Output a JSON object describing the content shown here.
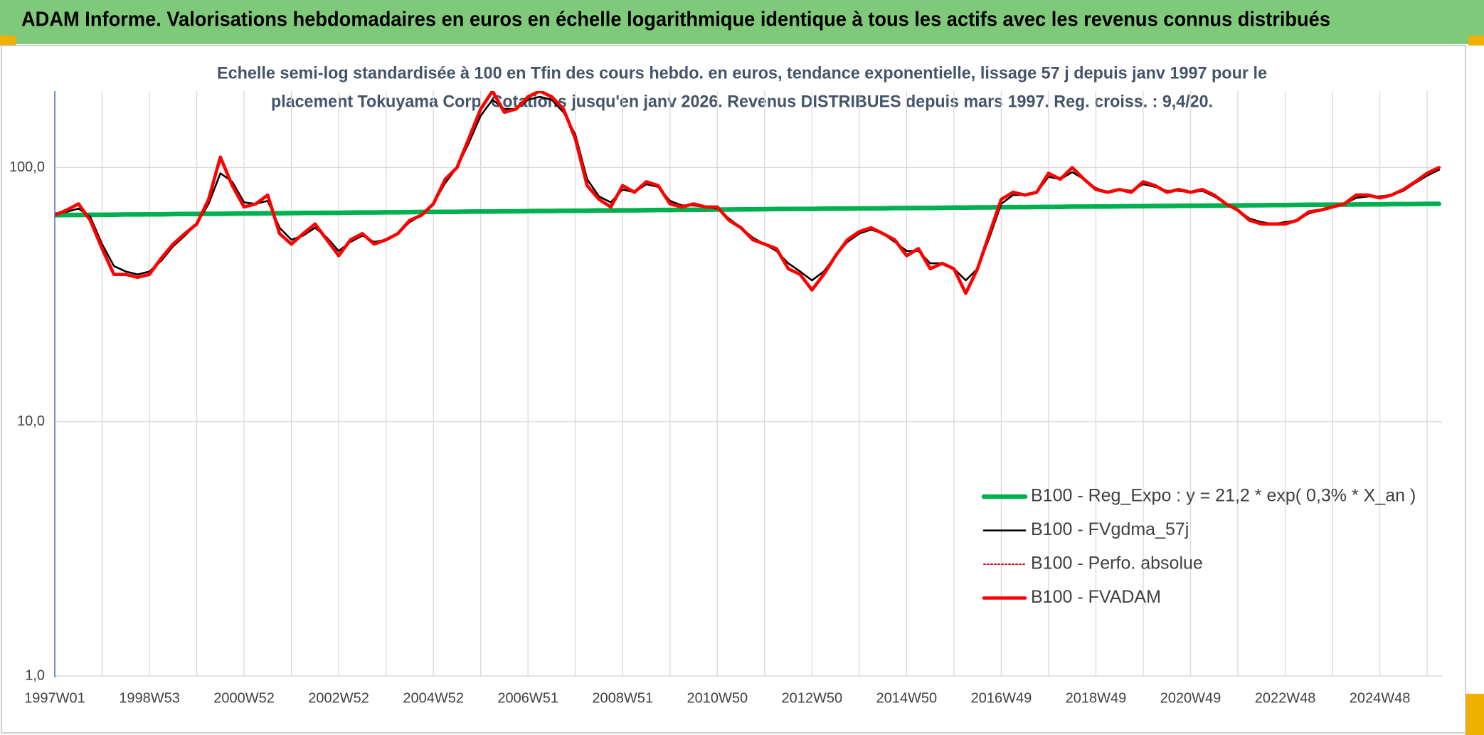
{
  "header": {
    "title": "ADAM Informe. Valorisations hebdomadaires en euros en échelle logarithmique identique à tous les actifs avec les revenus connus distribués"
  },
  "chart_data": {
    "type": "line",
    "subtitle": [
      "Echelle semi-log standardisée à 100 en Tfin des cours hebdo. en euros, tendance exponentielle, lissage 57 j depuis janv 1997 pour le",
      "placement Tokuyama Corp. Cotations jusqu'en janv 2026. Revenus DISTRIBUES depuis mars 1997. Reg. croiss. : 9,4/20."
    ],
    "log_scale": true,
    "grid": true,
    "legend": "lower right",
    "ylim": [
      1,
      200
    ],
    "yticks": [
      {
        "value": 1,
        "label": "1,0"
      },
      {
        "value": 10,
        "label": "10,0"
      },
      {
        "value": 100,
        "label": "100,0"
      }
    ],
    "categories": [
      "1997W01",
      null,
      null,
      null,
      null,
      null,
      null,
      null,
      "1998W53",
      null,
      null,
      null,
      null,
      null,
      null,
      null,
      "2000W52",
      null,
      null,
      null,
      null,
      null,
      null,
      null,
      "2002W52",
      null,
      null,
      null,
      null,
      null,
      null,
      null,
      "2004W52",
      null,
      null,
      null,
      null,
      null,
      null,
      null,
      "2006W51",
      null,
      null,
      null,
      null,
      null,
      null,
      null,
      "2008W51",
      null,
      null,
      null,
      null,
      null,
      null,
      null,
      "2010W50",
      null,
      null,
      null,
      null,
      null,
      null,
      null,
      "2012W50",
      null,
      null,
      null,
      null,
      null,
      null,
      null,
      "2014W50",
      null,
      null,
      null,
      null,
      null,
      null,
      null,
      "2016W49",
      null,
      null,
      null,
      null,
      null,
      null,
      null,
      "2018W49",
      null,
      null,
      null,
      null,
      null,
      null,
      null,
      "2020W49",
      null,
      null,
      null,
      null,
      null,
      null,
      null,
      "2022W48",
      null,
      null,
      null,
      null,
      null,
      null,
      null,
      "2024W48",
      null,
      null,
      null,
      null,
      null
    ],
    "series": [
      {
        "name": "B100 - Reg_Expo : y = 21,2 * exp( 0,3% *  X_an )",
        "color": "#00b050",
        "style": "solid",
        "values": [
          65.0,
          65.1,
          65.1,
          65.2,
          65.2,
          65.3,
          65.4,
          65.4,
          65.5,
          65.5,
          65.6,
          65.7,
          65.7,
          65.8,
          65.8,
          65.9,
          66.0,
          66.0,
          66.1,
          66.1,
          66.2,
          66.3,
          66.3,
          66.4,
          66.4,
          66.5,
          66.6,
          66.6,
          66.7,
          66.7,
          66.8,
          66.9,
          66.9,
          67.0,
          67.0,
          67.1,
          67.2,
          67.2,
          67.3,
          67.3,
          67.4,
          67.5,
          67.5,
          67.6,
          67.6,
          67.7,
          67.8,
          67.8,
          67.9,
          67.9,
          68.0,
          68.1,
          68.1,
          68.2,
          68.2,
          68.3,
          68.4,
          68.4,
          68.5,
          68.5,
          68.6,
          68.7,
          68.7,
          68.8,
          68.8,
          68.9,
          69.0,
          69.0,
          69.1,
          69.1,
          69.2,
          69.3,
          69.3,
          69.4,
          69.4,
          69.5,
          69.6,
          69.6,
          69.7,
          69.7,
          69.8,
          69.9,
          69.9,
          70.0,
          70.0,
          70.1,
          70.2,
          70.2,
          70.3,
          70.3,
          70.4,
          70.5,
          70.5,
          70.6,
          70.6,
          70.7,
          70.8,
          70.8,
          70.9,
          70.9,
          71.0,
          71.1,
          71.1,
          71.2,
          71.2,
          71.3,
          71.4,
          71.4,
          71.5,
          71.5,
          71.6,
          71.7,
          71.7,
          71.8,
          71.8,
          71.9,
          72.0,
          72.0
        ]
      },
      {
        "name": "B100 - FVgdma_57j",
        "color": "#000000",
        "style": "solid",
        "values": [
          66,
          67,
          69,
          64,
          50,
          41,
          39,
          38,
          39,
          43,
          49,
          54,
          60,
          72,
          95,
          88,
          73,
          72,
          74,
          58,
          52,
          54,
          58,
          53,
          47,
          51,
          54,
          51,
          52,
          55,
          61,
          65,
          72,
          87,
          100,
          125,
          160,
          185,
          170,
          170,
          185,
          190,
          185,
          165,
          135,
          90,
          77,
          73,
          82,
          80,
          86,
          84,
          74,
          71,
          71,
          70,
          69,
          63,
          58,
          53,
          50,
          47,
          42,
          39,
          36,
          39,
          45,
          51,
          55,
          57,
          55,
          51,
          47,
          47,
          42,
          42,
          40,
          36,
          40,
          53,
          72,
          78,
          78,
          80,
          92,
          90,
          96,
          90,
          83,
          80,
          82,
          81,
          86,
          84,
          81,
          81,
          80,
          81,
          77,
          72,
          68,
          63,
          61,
          60,
          61,
          62,
          66,
          68,
          70,
          72,
          76,
          77,
          77,
          78,
          81,
          87,
          93,
          98
        ]
      },
      {
        "name": "B100 - Perfo. absolue",
        "color": "#c00000",
        "style": "dotted",
        "values": [
          65,
          68,
          72,
          62,
          48,
          38,
          38,
          37,
          38,
          44,
          50,
          55,
          60,
          75,
          110,
          85,
          70,
          72,
          78,
          55,
          50,
          55,
          60,
          52,
          45,
          52,
          55,
          50,
          52,
          55,
          62,
          65,
          72,
          90,
          100,
          130,
          170,
          200,
          165,
          170,
          190,
          200,
          190,
          170,
          130,
          85,
          75,
          70,
          85,
          80,
          88,
          85,
          72,
          70,
          72,
          70,
          70,
          62,
          58,
          52,
          50,
          48,
          40,
          38,
          33,
          38,
          45,
          52,
          56,
          58,
          55,
          52,
          45,
          48,
          40,
          42,
          40,
          32,
          40,
          55,
          75,
          80,
          78,
          80,
          95,
          90,
          100,
          90,
          82,
          80,
          82,
          80,
          88,
          85,
          80,
          82,
          80,
          82,
          78,
          72,
          68,
          62,
          60,
          60,
          60,
          62,
          67,
          68,
          70,
          72,
          78,
          78,
          76,
          78,
          82,
          88,
          95,
          100
        ]
      },
      {
        "name": "B100 - FVADAM",
        "color": "#ff0000",
        "style": "solid",
        "values": [
          65,
          68,
          72,
          62,
          48,
          38,
          38,
          37,
          38,
          44,
          50,
          55,
          60,
          75,
          110,
          85,
          70,
          72,
          78,
          55,
          50,
          55,
          60,
          52,
          45,
          52,
          55,
          50,
          52,
          55,
          62,
          65,
          72,
          90,
          100,
          130,
          170,
          200,
          165,
          170,
          190,
          200,
          190,
          170,
          130,
          85,
          75,
          70,
          85,
          80,
          88,
          85,
          72,
          70,
          72,
          70,
          70,
          62,
          58,
          52,
          50,
          48,
          40,
          38,
          33,
          38,
          45,
          52,
          56,
          58,
          55,
          52,
          45,
          48,
          40,
          42,
          40,
          32,
          40,
          55,
          75,
          80,
          78,
          80,
          95,
          90,
          100,
          90,
          82,
          80,
          82,
          80,
          88,
          85,
          80,
          82,
          80,
          82,
          78,
          72,
          68,
          62,
          60,
          60,
          60,
          62,
          67,
          68,
          70,
          72,
          78,
          78,
          76,
          78,
          82,
          88,
          95,
          100
        ]
      }
    ]
  }
}
